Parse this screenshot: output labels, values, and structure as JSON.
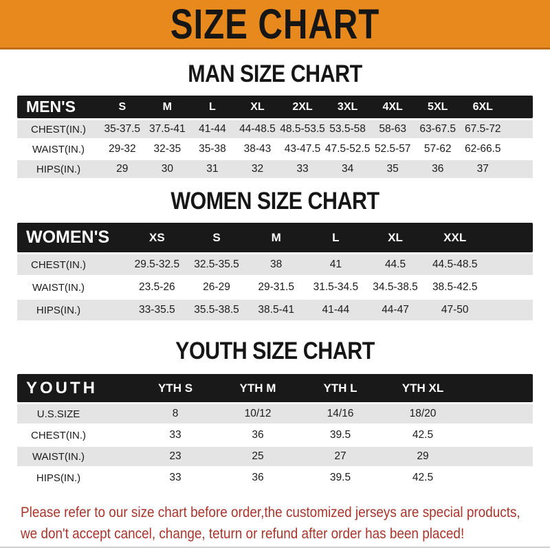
{
  "banner": {
    "title": "SIZE CHART"
  },
  "sections": [
    {
      "id": "man",
      "heading": "MAN SIZE CHART",
      "table": {
        "corner_label": "MEN'S",
        "columns": [
          "S",
          "M",
          "L",
          "XL",
          "2XL",
          "3XL",
          "4XL",
          "5XL",
          "6XL"
        ],
        "rows": [
          {
            "label": "CHEST(IN.)",
            "values": [
              "35-37.5",
              "37.5-41",
              "41-44",
              "44-48.5",
              "48.5-53.5",
              "53.5-58",
              "58-63",
              "63-67.5",
              "67.5-72"
            ]
          },
          {
            "label": "WAIST(IN.)",
            "values": [
              "29-32",
              "32-35",
              "35-38",
              "38-43",
              "43-47.5",
              "47.5-52.5",
              "52.5-57",
              "57-62",
              "62-66.5"
            ]
          },
          {
            "label": "HIPS(IN.)",
            "values": [
              "29",
              "30",
              "31",
              "32",
              "33",
              "34",
              "35",
              "36",
              "37"
            ]
          }
        ]
      }
    },
    {
      "id": "women",
      "heading": "WOMEN SIZE CHART",
      "table": {
        "corner_label": "WOMEN'S",
        "columns": [
          "XS",
          "S",
          "M",
          "L",
          "XL",
          "XXL"
        ],
        "rows": [
          {
            "label": "CHEST(IN.)",
            "values": [
              "29.5-32.5",
              "32.5-35.5",
              "38",
              "41",
              "44.5",
              "44.5-48.5"
            ]
          },
          {
            "label": "WAIST(IN.)",
            "values": [
              "23.5-26",
              "26-29",
              "29-31.5",
              "31.5-34.5",
              "34.5-38.5",
              "38.5-42.5"
            ]
          },
          {
            "label": "HIPS(IN.)",
            "values": [
              "33-35.5",
              "35.5-38.5",
              "38.5-41",
              "41-44",
              "44-47",
              "47-50"
            ]
          }
        ]
      }
    },
    {
      "id": "youth",
      "heading": "YOUTH SIZE CHART",
      "table": {
        "corner_label": "YOUTH",
        "columns": [
          "YTH S",
          "YTH M",
          "YTH L",
          "YTH XL"
        ],
        "rows": [
          {
            "label": "U.S.SIZE",
            "values": [
              "8",
              "10/12",
              "14/16",
              "18/20"
            ]
          },
          {
            "label": "CHEST(IN.)",
            "values": [
              "33",
              "36",
              "39.5",
              "42.5"
            ]
          },
          {
            "label": "WAIST(IN.)",
            "values": [
              "23",
              "25",
              "27",
              "29"
            ]
          },
          {
            "label": "HIPS(IN.)",
            "values": [
              "33",
              "36",
              "39.5",
              "42.5"
            ]
          }
        ]
      }
    }
  ],
  "footer": {
    "line1": "Please refer to our size chart before order,the customized jerseys are special products,",
    "line2": "we don't accept cancel, change, teturn or refund after order has been placed!"
  },
  "colors": {
    "banner_bg": "#E8891E",
    "banner_text": "#161616",
    "table_header_bg": "#191919",
    "table_header_text": "#FFFFFF",
    "row_stripe": "#E4E4E4",
    "row_white": "#FFFFFF",
    "footer_text": "#A9352B"
  }
}
